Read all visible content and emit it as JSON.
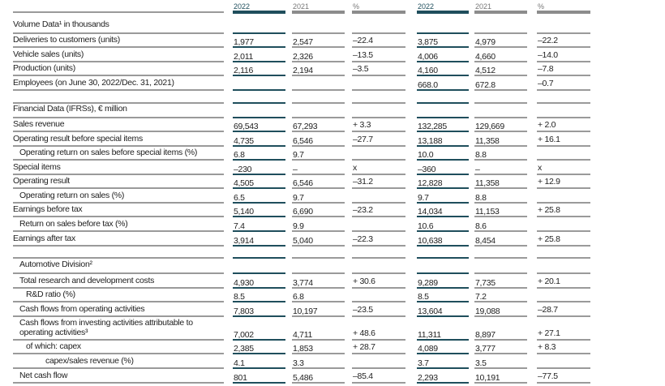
{
  "header": [
    "2022",
    "2021",
    "%",
    "2022",
    "2021",
    "%"
  ],
  "colors": {
    "accent": "#1f4e5c",
    "rule": "#9a9a9a"
  },
  "rows": [
    {
      "label": "Volume Data¹ in thousands",
      "type": "title",
      "values": [
        "",
        "",
        "",
        "",
        "",
        ""
      ]
    },
    {
      "label": "Deliveries to customers (units)",
      "values": [
        "1,977",
        "2,547",
        "–22.4",
        "3,875",
        "4,979",
        "–22.2"
      ]
    },
    {
      "label": "Vehicle sales (units)",
      "values": [
        "2,011",
        "2,326",
        "–13.5",
        "4,006",
        "4,660",
        "–14.0"
      ]
    },
    {
      "label": "Production (units)",
      "values": [
        "2,116",
        "2,194",
        "–3.5",
        "4,160",
        "4,512",
        "–7.8"
      ]
    },
    {
      "label": "Employees (on June 30, 2022/Dec. 31, 2021)",
      "values": [
        "",
        "",
        "",
        "668.0",
        "672.8",
        "–0.7"
      ]
    },
    {
      "label": "",
      "type": "spacer",
      "values": [
        "",
        "",
        "",
        "",
        "",
        ""
      ]
    },
    {
      "label": "Financial Data (IFRSs), € million",
      "type": "title",
      "values": [
        "",
        "",
        "",
        "",
        "",
        ""
      ]
    },
    {
      "label": "Sales revenue",
      "values": [
        "69,543",
        "67,293",
        "+ 3.3",
        "132,285",
        "129,669",
        "+ 2.0"
      ]
    },
    {
      "label": "Operating result before special items",
      "values": [
        "4,735",
        "6,546",
        "–27.7",
        "13,188",
        "11,358",
        "+ 16.1"
      ]
    },
    {
      "label": "Operating return on sales before special items (%)",
      "indent": 1,
      "values": [
        "6.8",
        "9.7",
        "",
        "10.0",
        "8.8",
        ""
      ]
    },
    {
      "label": "Special items",
      "values": [
        "–230",
        "–",
        "x",
        "–360",
        "–",
        "x"
      ]
    },
    {
      "label": "Operating result",
      "values": [
        "4,505",
        "6,546",
        "–31.2",
        "12,828",
        "11,358",
        "+ 12.9"
      ]
    },
    {
      "label": "Operating return on sales (%)",
      "indent": 1,
      "values": [
        "6.5",
        "9.7",
        "",
        "9.7",
        "8.8",
        ""
      ]
    },
    {
      "label": "Earnings before tax",
      "values": [
        "5,140",
        "6,690",
        "–23.2",
        "14,034",
        "11,153",
        "+ 25.8"
      ]
    },
    {
      "label": "Return on sales before tax (%)",
      "indent": 1,
      "values": [
        "7.4",
        "9.9",
        "",
        "10.6",
        "8.6",
        ""
      ]
    },
    {
      "label": "Earnings after tax",
      "values": [
        "3,914",
        "5,040",
        "–22.3",
        "10,638",
        "8,454",
        "+ 25.8"
      ]
    },
    {
      "label": "",
      "type": "spacer",
      "values": [
        "",
        "",
        "",
        "",
        "",
        ""
      ]
    },
    {
      "label": "Automotive Division²",
      "type": "title",
      "indent": 1,
      "values": [
        "",
        "",
        "",
        "",
        "",
        ""
      ]
    },
    {
      "label": "Total research and development costs",
      "indent": 1,
      "values": [
        "4,930",
        "3,774",
        "+ 30.6",
        "9,289",
        "7,735",
        "+ 20.1"
      ]
    },
    {
      "label": "R&D ratio (%)",
      "indent": 2,
      "values": [
        "8.5",
        "6.8",
        "",
        "8.5",
        "7.2",
        ""
      ]
    },
    {
      "label": "Cash flows from operating activities",
      "indent": 1,
      "values": [
        "7,803",
        "10,197",
        "–23.5",
        "13,604",
        "19,088",
        "–28.7"
      ]
    },
    {
      "label": "Cash flows from investing activities attributable to",
      "label2": "operating activities³",
      "indent": 1,
      "values": [
        "7,002",
        "4,711",
        "+ 48.6",
        "11,311",
        "8,897",
        "+ 27.1"
      ]
    },
    {
      "label": "of which: capex",
      "indent": 2,
      "values": [
        "2,385",
        "1,853",
        "+ 28.7",
        "4,089",
        "3,777",
        "+ 8.3"
      ]
    },
    {
      "label": "capex/sales revenue (%)",
      "indent": 5,
      "values": [
        "4.1",
        "3.3",
        "",
        "3.7",
        "3.5",
        ""
      ]
    },
    {
      "label": "Net cash flow",
      "indent": 1,
      "values": [
        "801",
        "5,486",
        "–85.4",
        "2,293",
        "10,191",
        "–77.5"
      ]
    }
  ]
}
